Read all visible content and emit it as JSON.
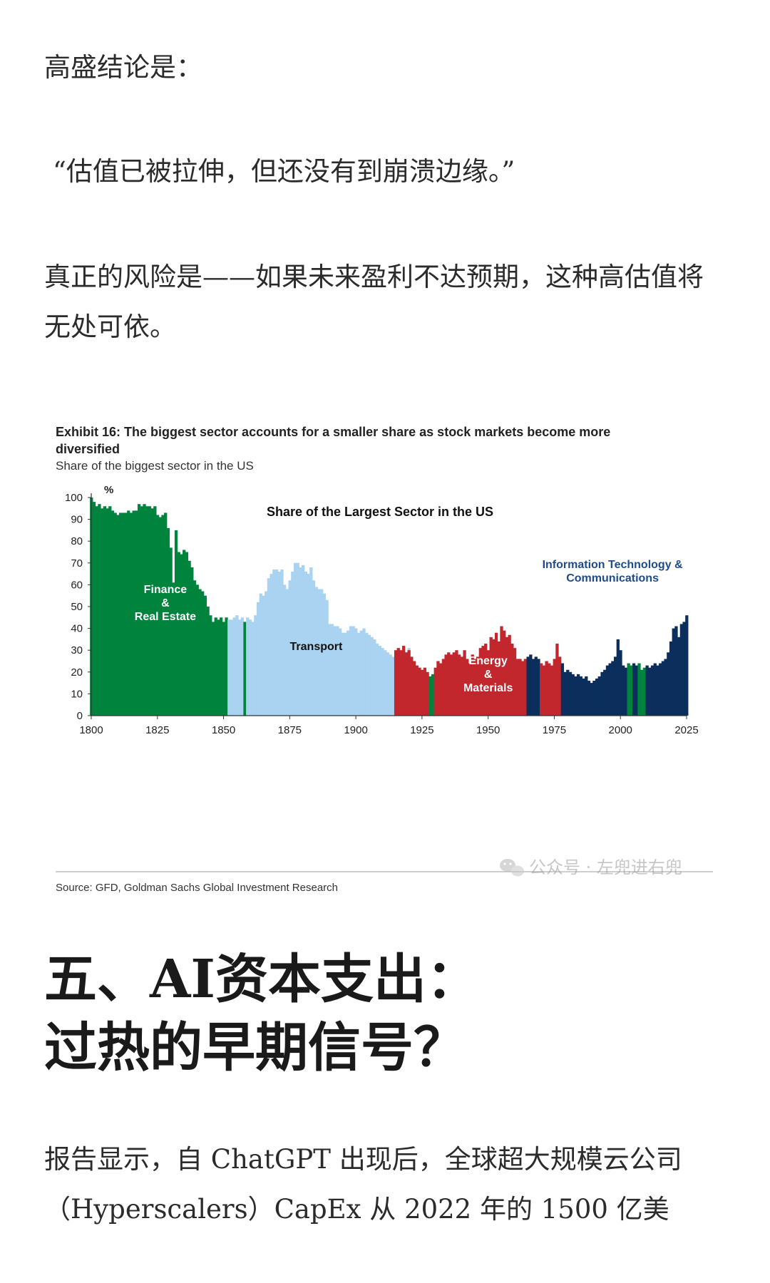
{
  "article": {
    "p1": "高盛结论是：",
    "p2": "“估值已被拉伸，但还没有到崩溃边缘。”",
    "p3": "真正的风险是——如果未来盈利不达预期，这种高估值将无处可依。",
    "heading_line1": "五、AI资本支出：",
    "heading_line2": "过热的早期信号？",
    "p4": "报告显示，自 ChatGPT 出现后，全球超大规模云公司（Hyperscalers）CapEx 从 2022 年的 1500 亿美"
  },
  "figure": {
    "exhibit_title_line1": "Exhibit 16: The biggest sector accounts for a smaller share as stock markets become more",
    "exhibit_title_line2": "diversified",
    "subtitle": "Share of the biggest sector in the US",
    "source": "Source: GFD, Goldman Sachs Global Investment Research",
    "watermark": "公众号 · 左兜进右兜"
  },
  "chart_data": {
    "type": "bar",
    "title": "Share of the Largest Sector in the US",
    "ylabel": "%",
    "xlabel": "",
    "xlim": [
      1800,
      2025
    ],
    "ylim": [
      0,
      100
    ],
    "x_ticks": [
      1800,
      1825,
      1850,
      1875,
      1900,
      1925,
      1950,
      1975,
      2000,
      2025
    ],
    "y_ticks": [
      0,
      10,
      20,
      30,
      40,
      50,
      60,
      70,
      80,
      90,
      100
    ],
    "grid": false,
    "colors": {
      "Finance & Real Estate": "#00843d",
      "Transport": "#a9d3f0",
      "Energy & Materials": "#c1272d",
      "Information Technology & Communications": "#0b2e5c"
    },
    "annotations": [
      {
        "text": [
          "Finance",
          "&",
          "Real Estate"
        ],
        "series": "Finance & Real Estate"
      },
      {
        "text": [
          "Transport"
        ],
        "series": "Transport"
      },
      {
        "text": [
          "Energy",
          "&",
          "Materials"
        ],
        "series": "Energy & Materials"
      },
      {
        "text": [
          "Information Technology &",
          "Communications"
        ],
        "series": "Information Technology & Communications"
      }
    ],
    "segments": [
      {
        "series": "Finance & Real Estate",
        "x": [
          1800,
          1801,
          1802,
          1803,
          1804,
          1805,
          1806,
          1807,
          1808,
          1809,
          1810,
          1811,
          1812,
          1813,
          1814,
          1815,
          1816,
          1817,
          1818,
          1819,
          1820,
          1821,
          1822,
          1823,
          1824,
          1825,
          1826,
          1827,
          1828,
          1829,
          1830,
          1831,
          1832,
          1833,
          1834,
          1835,
          1836,
          1837,
          1838,
          1839,
          1840,
          1841,
          1842,
          1843,
          1844,
          1845,
          1846,
          1847,
          1848,
          1849,
          1850,
          1851
        ],
        "values": [
          100,
          98,
          96,
          97,
          95,
          96,
          95,
          96,
          94,
          93,
          92,
          93,
          93,
          93,
          94,
          93,
          94,
          94,
          97,
          96,
          97,
          96,
          96,
          95,
          96,
          92,
          91,
          92,
          93,
          86,
          77,
          61,
          85,
          75,
          74,
          76,
          75,
          71,
          68,
          62,
          60,
          58,
          57,
          55,
          50,
          46,
          43,
          45,
          44,
          45,
          43,
          45
        ]
      },
      {
        "series": "Transport",
        "x": [
          1852,
          1853,
          1854,
          1855,
          1856,
          1857
        ],
        "values": [
          44,
          44,
          45,
          46,
          44,
          45
        ]
      },
      {
        "series": "Finance & Real Estate",
        "x": [
          1858
        ],
        "values": [
          43
        ]
      },
      {
        "series": "Transport",
        "x": [
          1859,
          1860,
          1861,
          1862,
          1863,
          1864,
          1865,
          1866,
          1867,
          1868,
          1869,
          1870,
          1871,
          1872,
          1873,
          1874,
          1875,
          1876,
          1877,
          1878,
          1879,
          1880,
          1881,
          1882,
          1883,
          1884,
          1885,
          1886,
          1887,
          1888,
          1889,
          1890,
          1891,
          1892,
          1893,
          1894,
          1895,
          1896,
          1897,
          1898,
          1899,
          1900,
          1901,
          1902,
          1903,
          1904,
          1905,
          1906,
          1907,
          1908,
          1909,
          1910,
          1911,
          1912,
          1913,
          1914,
          1915,
          1916,
          1917,
          1918,
          1919,
          1920
        ],
        "values": [
          45,
          44,
          43,
          46,
          52,
          56,
          55,
          57,
          63,
          65,
          67,
          67,
          66,
          67,
          60,
          58,
          62,
          66,
          70,
          70,
          68,
          69,
          66,
          65,
          68,
          62,
          59,
          58,
          58,
          56,
          53,
          42,
          42,
          41,
          41,
          40,
          38,
          38,
          39,
          41,
          41,
          40,
          38,
          39,
          40,
          38,
          37,
          36,
          35,
          33,
          32,
          31,
          30,
          29,
          28,
          27,
          26,
          28,
          25,
          31,
          29,
          31
        ]
      },
      {
        "series": "Energy & Materials",
        "x": [
          1915,
          1916,
          1917,
          1918,
          1919,
          1920,
          1921,
          1922,
          1923,
          1924,
          1925,
          1926,
          1927
        ],
        "values": [
          30,
          31,
          30,
          32,
          29,
          30,
          27,
          25,
          23,
          22,
          21,
          22,
          20
        ]
      },
      {
        "series": "Finance & Real Estate",
        "x": [
          1928,
          1929
        ],
        "values": [
          18,
          19
        ]
      },
      {
        "series": "Energy & Materials",
        "x": [
          1930,
          1931,
          1932,
          1933,
          1934,
          1935,
          1936,
          1937,
          1938,
          1939,
          1940,
          1941,
          1942,
          1943,
          1944,
          1945,
          1946,
          1947,
          1948,
          1949,
          1950,
          1951,
          1952,
          1953,
          1954,
          1955,
          1956,
          1957,
          1958,
          1959,
          1960,
          1961,
          1962,
          1963,
          1964
        ],
        "values": [
          22,
          25,
          24,
          26,
          28,
          29,
          28,
          29,
          30,
          28,
          27,
          30,
          26,
          24,
          28,
          26,
          27,
          31,
          32,
          33,
          30,
          36,
          35,
          38,
          34,
          41,
          39,
          36,
          37,
          33,
          31,
          26,
          26,
          25,
          26
        ]
      },
      {
        "series": "Information Technology & Communications",
        "x": [
          1965,
          1966,
          1967,
          1968,
          1969
        ],
        "values": [
          27,
          28,
          26,
          27,
          26
        ]
      },
      {
        "series": "Energy & Materials",
        "x": [
          1970,
          1971,
          1972,
          1973,
          1974,
          1975,
          1976,
          1977
        ],
        "values": [
          24,
          23,
          25,
          24,
          23,
          26,
          33,
          27
        ]
      },
      {
        "series": "Information Technology & Communications",
        "x": [
          1978,
          1979,
          1980,
          1981,
          1982,
          1983,
          1984,
          1985,
          1986,
          1987,
          1988,
          1989,
          1990,
          1991,
          1992,
          1993,
          1994,
          1995,
          1996,
          1997,
          1998,
          1999,
          2000,
          2001,
          2002
        ],
        "values": [
          24,
          20,
          21,
          20,
          19,
          18,
          19,
          18,
          17,
          18,
          16,
          15,
          16,
          17,
          18,
          20,
          21,
          23,
          24,
          25,
          27,
          35,
          30,
          23,
          22
        ]
      },
      {
        "series": "Finance & Real Estate",
        "x": [
          2003,
          2004
        ],
        "values": [
          24,
          23
        ]
      },
      {
        "series": "Information Technology & Communications",
        "x": [
          2005,
          2006
        ],
        "values": [
          24,
          23
        ]
      },
      {
        "series": "Finance & Real Estate",
        "x": [
          2007,
          2008,
          2009
        ],
        "values": [
          24,
          21,
          22
        ]
      },
      {
        "series": "Information Technology & Communications",
        "x": [
          2010,
          2011,
          2012,
          2013,
          2014,
          2015,
          2016,
          2017,
          2018,
          2019,
          2020,
          2021,
          2022,
          2023,
          2024,
          2025
        ],
        "values": [
          23,
          22,
          23,
          24,
          23,
          24,
          25,
          26,
          29,
          34,
          40,
          41,
          36,
          42,
          43,
          46
        ]
      }
    ]
  }
}
